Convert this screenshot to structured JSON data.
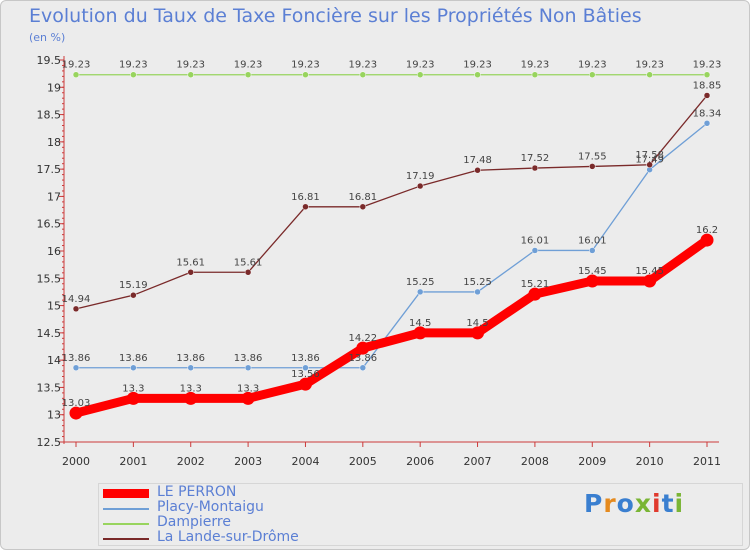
{
  "header": {
    "title": "Evolution du Taux de Taxe Foncière sur les Propriétés Non Bâties",
    "unit": "(en %)"
  },
  "logo": {
    "text": "Proxiti",
    "colors": [
      "#3a7fd0",
      "#e58a1e",
      "#3a7fd0",
      "#7ab535",
      "#e03a2e",
      "#3a7fd0",
      "#7ab535"
    ]
  },
  "chart_data": {
    "type": "line",
    "title": "Evolution du Taux de Taxe Foncière sur les Propriétés Non Bâties",
    "ylabel": "(en %)",
    "xlabel": "",
    "x": [
      "2000",
      "2001",
      "2002",
      "2003",
      "2004",
      "2005",
      "2006",
      "2007",
      "2008",
      "2009",
      "2010",
      "2011"
    ],
    "ylim": [
      12.5,
      19.5
    ],
    "yticks": [
      12.5,
      13,
      13.5,
      14,
      14.5,
      15,
      15.5,
      16,
      16.5,
      17,
      17.5,
      18,
      18.5,
      19,
      19.5
    ],
    "ytick_labels": [
      "12.5",
      "13",
      "13.5",
      "14",
      "14.5",
      "15",
      "15.5",
      "16",
      "16.5",
      "17",
      "17.5",
      "18",
      "18.5",
      "19",
      "19.5"
    ],
    "grid": false,
    "legend_position": "bottom",
    "series": [
      {
        "name": "LE PERRON",
        "color": "#ff0000",
        "values": [
          13.03,
          13.3,
          13.3,
          13.3,
          13.56,
          14.22,
          14.5,
          14.5,
          15.21,
          15.45,
          15.45,
          16.2
        ],
        "labels": [
          "13.03",
          "13.3",
          "13.3",
          "13.3",
          "13.56",
          "14.22",
          "14.5",
          "14.5",
          "15.21",
          "15.45",
          "15.45",
          "16.2"
        ]
      },
      {
        "name": "Placy-Montaigu",
        "color": "#6f9fd6",
        "values": [
          13.86,
          13.86,
          13.86,
          13.86,
          13.86,
          13.86,
          15.25,
          15.25,
          16.01,
          16.01,
          17.49,
          18.34
        ],
        "labels": [
          "13.86",
          "13.86",
          "13.86",
          "13.86",
          "13.86",
          "13.86",
          "15.25",
          "15.25",
          "16.01",
          "16.01",
          "17.49",
          "18.34"
        ]
      },
      {
        "name": "Dampierre",
        "color": "#98d45e",
        "values": [
          19.23,
          19.23,
          19.23,
          19.23,
          19.23,
          19.23,
          19.23,
          19.23,
          19.23,
          19.23,
          19.23,
          19.23
        ],
        "labels": [
          "19.23",
          "19.23",
          "19.23",
          "19.23",
          "19.23",
          "19.23",
          "19.23",
          "19.23",
          "19.23",
          "19.23",
          "19.23",
          "19.23"
        ]
      },
      {
        "name": "La Lande-sur-Drôme",
        "color": "#7a2a2a",
        "values": [
          14.94,
          15.19,
          15.61,
          15.61,
          16.81,
          16.81,
          17.19,
          17.48,
          17.52,
          17.55,
          17.58,
          18.85
        ],
        "labels": [
          "14.94",
          "15.19",
          "15.61",
          "15.61",
          "16.81",
          "16.81",
          "17.19",
          "17.48",
          "17.52",
          "17.55",
          "17.58",
          "18.85"
        ]
      }
    ]
  }
}
